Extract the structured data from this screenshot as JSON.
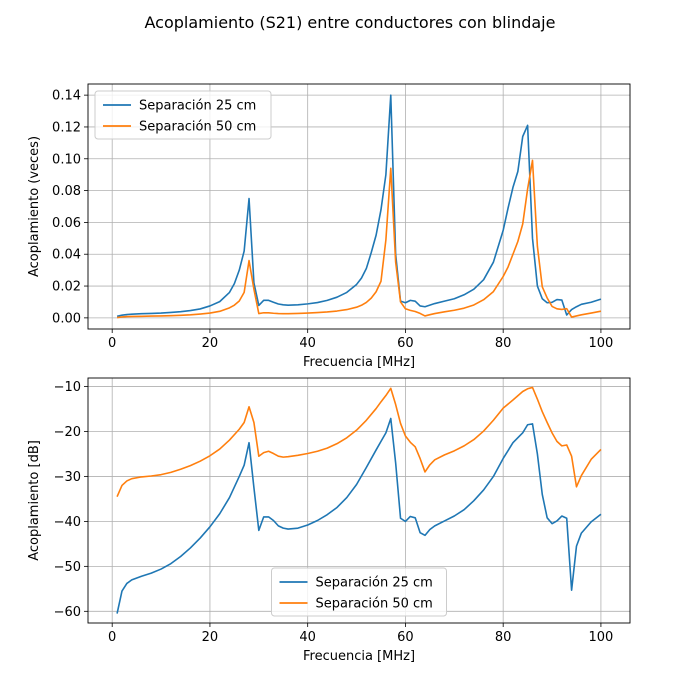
{
  "figure": {
    "title": "Acoplamiento (S21) entre conductores con blindaje"
  },
  "colors": {
    "series_25": "#1f77b4",
    "series_50": "#ff7f0e",
    "grid": "#b0b0b0"
  },
  "chart_data": [
    {
      "type": "line",
      "title": "",
      "xlabel": "Frecuencia [MHz]",
      "ylabel": "Acoplamiento (veces)",
      "xlim": [
        -4.95,
        105.95
      ],
      "ylim": [
        -0.007,
        0.147
      ],
      "xticks": [
        0,
        20,
        40,
        60,
        80,
        100
      ],
      "yticks": [
        0.0,
        0.02,
        0.04,
        0.06,
        0.08,
        0.1,
        0.12,
        0.14
      ],
      "ytick_labels": [
        "0.00",
        "0.02",
        "0.04",
        "0.06",
        "0.08",
        "0.10",
        "0.12",
        "0.14"
      ],
      "grid": true,
      "legend_position": "upper-left",
      "series": [
        {
          "name": "Separación 25 cm",
          "color": "#1f77b4",
          "x": [
            1,
            2,
            3,
            4,
            6,
            8,
            10,
            12,
            14,
            16,
            18,
            20,
            22,
            24,
            25,
            26,
            27,
            28,
            29,
            30,
            31,
            32,
            33,
            34,
            35,
            36,
            38,
            40,
            42,
            44,
            46,
            48,
            50,
            51,
            52,
            53,
            54,
            55,
            56,
            57,
            58,
            59,
            60,
            61,
            62,
            63,
            64,
            65,
            66,
            68,
            70,
            72,
            74,
            76,
            78,
            80,
            81,
            82,
            83,
            84,
            85,
            86,
            87,
            88,
            89,
            90,
            91,
            92,
            93,
            94,
            95,
            96,
            98,
            100
          ],
          "y": [
            0.001,
            0.0017,
            0.0021,
            0.0023,
            0.0026,
            0.0028,
            0.003,
            0.0034,
            0.0039,
            0.0046,
            0.0056,
            0.0075,
            0.0102,
            0.016,
            0.0215,
            0.03,
            0.042,
            0.075,
            0.022,
            0.0078,
            0.011,
            0.011,
            0.0098,
            0.0087,
            0.0082,
            0.008,
            0.0082,
            0.0088,
            0.0096,
            0.011,
            0.013,
            0.016,
            0.021,
            0.025,
            0.031,
            0.041,
            0.052,
            0.068,
            0.09,
            0.14,
            0.04,
            0.0105,
            0.0095,
            0.011,
            0.0105,
            0.0075,
            0.007,
            0.008,
            0.009,
            0.0105,
            0.012,
            0.0145,
            0.018,
            0.024,
            0.035,
            0.055,
            0.069,
            0.082,
            0.092,
            0.114,
            0.121,
            0.05,
            0.02,
            0.012,
            0.0095,
            0.0098,
            0.0115,
            0.0112,
            0.0018,
            0.0052,
            0.007,
            0.0085,
            0.0098,
            0.0118
          ]
        },
        {
          "name": "Separación 50 cm",
          "color": "#ff7f0e",
          "x": [
            1,
            2,
            3,
            4,
            6,
            8,
            10,
            12,
            14,
            16,
            18,
            20,
            22,
            24,
            25,
            26,
            27,
            28,
            29,
            30,
            31,
            32,
            33,
            34,
            35,
            36,
            38,
            40,
            42,
            44,
            46,
            48,
            50,
            51,
            52,
            53,
            54,
            55,
            56,
            57,
            58,
            59,
            60,
            61,
            62,
            63,
            64,
            65,
            66,
            68,
            70,
            72,
            74,
            76,
            78,
            80,
            81,
            82,
            83,
            84,
            85,
            86,
            87,
            88,
            89,
            90,
            91,
            92,
            93,
            94,
            95,
            96,
            98,
            100
          ],
          "y": [
            0.0002,
            0.0006,
            0.0008,
            0.0009,
            0.001,
            0.0011,
            0.0012,
            0.0014,
            0.0016,
            0.0019,
            0.0024,
            0.003,
            0.0041,
            0.0063,
            0.008,
            0.0106,
            0.016,
            0.036,
            0.018,
            0.0027,
            0.0032,
            0.0032,
            0.0029,
            0.0027,
            0.0026,
            0.0026,
            0.0028,
            0.003,
            0.0033,
            0.0037,
            0.0043,
            0.0052,
            0.0067,
            0.0079,
            0.0097,
            0.0124,
            0.0164,
            0.023,
            0.049,
            0.094,
            0.035,
            0.01,
            0.0057,
            0.0047,
            0.004,
            0.0028,
            0.0012,
            0.002,
            0.0027,
            0.0038,
            0.0048,
            0.0061,
            0.0081,
            0.0114,
            0.0165,
            0.026,
            0.032,
            0.04,
            0.048,
            0.059,
            0.081,
            0.099,
            0.045,
            0.0195,
            0.0125,
            0.0072,
            0.0057,
            0.0053,
            0.0058,
            0.0005,
            0.0012,
            0.0019,
            0.003,
            0.0042
          ]
        }
      ]
    },
    {
      "type": "line",
      "title": "",
      "xlabel": "Frecuencia [MHz]",
      "ylabel": "Acoplamiento [dB]",
      "xlim": [
        -4.95,
        105.95
      ],
      "ylim": [
        -62.6,
        -8.1
      ],
      "xticks": [
        0,
        20,
        40,
        60,
        80,
        100
      ],
      "yticks": [
        -60,
        -50,
        -40,
        -30,
        -20,
        -10
      ],
      "ytick_labels": [
        "−60",
        "−50",
        "−40",
        "−30",
        "−20",
        "−10"
      ],
      "grid": true,
      "legend_position": "lower-center",
      "series": [
        {
          "name": "Separación 25 cm",
          "color": "#1f77b4",
          "x": [
            1,
            2,
            3,
            4,
            6,
            8,
            10,
            12,
            14,
            16,
            18,
            20,
            22,
            24,
            26,
            27,
            28,
            29,
            30,
            31,
            32,
            33,
            34,
            35,
            36,
            38,
            40,
            42,
            44,
            46,
            48,
            50,
            52,
            54,
            55,
            56,
            57,
            58,
            59,
            60,
            61,
            62,
            63,
            64,
            65,
            66,
            68,
            70,
            72,
            74,
            76,
            78,
            80,
            82,
            84,
            85,
            86,
            87,
            88,
            89,
            90,
            91,
            92,
            93,
            94,
            95,
            96,
            98,
            100
          ],
          "y": [
            -60.5,
            -55.5,
            -53.8,
            -53.0,
            -52.2,
            -51.5,
            -50.6,
            -49.4,
            -47.8,
            -45.9,
            -43.7,
            -41.2,
            -38.3,
            -34.7,
            -30.0,
            -27.5,
            -22.5,
            -32.5,
            -42.0,
            -39.0,
            -39.0,
            -39.8,
            -41.0,
            -41.5,
            -41.7,
            -41.5,
            -40.8,
            -39.8,
            -38.5,
            -36.9,
            -34.7,
            -31.8,
            -28.0,
            -24.1,
            -22.2,
            -20.3,
            -17.1,
            -27.0,
            -39.3,
            -40.0,
            -38.9,
            -39.2,
            -42.5,
            -43.1,
            -41.8,
            -41.0,
            -39.9,
            -38.8,
            -37.4,
            -35.4,
            -33.0,
            -30.0,
            -26.0,
            -22.5,
            -20.3,
            -18.5,
            -18.3,
            -25.0,
            -34.0,
            -39.2,
            -40.5,
            -39.9,
            -38.8,
            -39.3,
            -55.3,
            -45.5,
            -42.6,
            -40.1,
            -38.4
          ]
        },
        {
          "name": "Separación 50 cm",
          "color": "#ff7f0e",
          "x": [
            1,
            2,
            3,
            4,
            6,
            8,
            10,
            12,
            14,
            16,
            18,
            20,
            22,
            24,
            26,
            27,
            28,
            29,
            30,
            31,
            32,
            33,
            34,
            35,
            36,
            38,
            40,
            42,
            44,
            46,
            48,
            50,
            52,
            54,
            55,
            56,
            57,
            58,
            59,
            60,
            61,
            62,
            63,
            64,
            65,
            66,
            68,
            70,
            72,
            74,
            76,
            78,
            80,
            82,
            84,
            85,
            86,
            87,
            88,
            89,
            90,
            91,
            92,
            93,
            94,
            95,
            96,
            98,
            100
          ],
          "y": [
            -34.5,
            -32.0,
            -31.0,
            -30.5,
            -30.1,
            -29.9,
            -29.6,
            -29.1,
            -28.4,
            -27.6,
            -26.6,
            -25.4,
            -23.9,
            -21.9,
            -19.5,
            -18.0,
            -14.5,
            -18.0,
            -25.5,
            -24.7,
            -24.4,
            -24.9,
            -25.5,
            -25.7,
            -25.6,
            -25.3,
            -24.9,
            -24.4,
            -23.7,
            -22.7,
            -21.4,
            -19.7,
            -17.5,
            -14.9,
            -13.4,
            -12.0,
            -10.4,
            -14.0,
            -18.2,
            -21.0,
            -22.4,
            -23.4,
            -26.0,
            -29.0,
            -27.4,
            -26.3,
            -25.2,
            -24.3,
            -23.2,
            -21.8,
            -19.9,
            -17.5,
            -14.8,
            -13.0,
            -11.1,
            -10.5,
            -10.2,
            -12.8,
            -15.6,
            -18.0,
            -20.3,
            -22.2,
            -23.2,
            -23.0,
            -25.5,
            -32.3,
            -29.8,
            -26.2,
            -24.0
          ]
        }
      ]
    }
  ]
}
